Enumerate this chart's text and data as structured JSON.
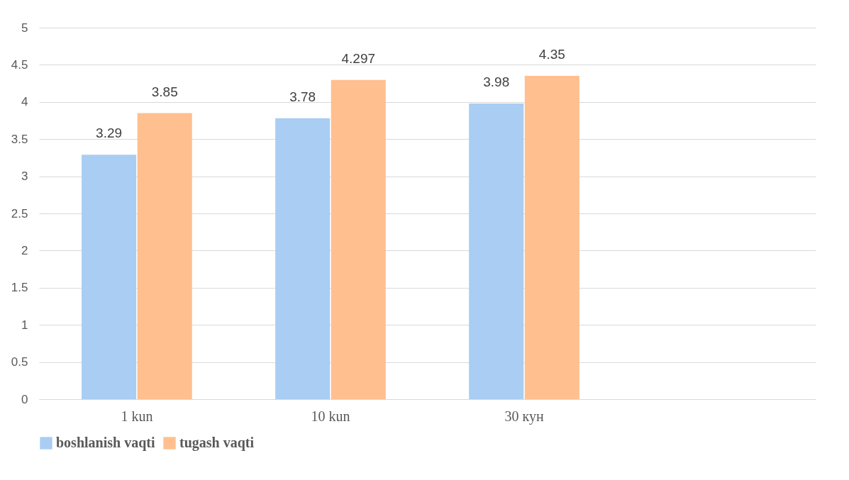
{
  "chart_data": {
    "type": "bar",
    "categories": [
      "1 kun",
      "10 kun",
      "30 кун",
      null
    ],
    "series": [
      {
        "name": "boshlanish vaqti",
        "color": "#a9cdf3",
        "values": [
          3.29,
          3.78,
          3.98,
          null
        ]
      },
      {
        "name": "tugash vaqti",
        "color": "#ffbf8e",
        "values": [
          3.85,
          4.297,
          4.35,
          null
        ]
      }
    ],
    "ylim": [
      0,
      5
    ],
    "yticks": [
      0,
      0.5,
      1,
      1.5,
      2,
      2.5,
      3,
      3.5,
      4,
      4.5,
      5
    ],
    "grid": "y",
    "legend": "bottom",
    "data_labels": true
  }
}
